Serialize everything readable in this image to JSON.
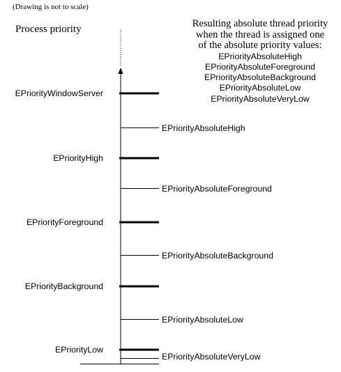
{
  "note": "(Drawing is not to scale)",
  "axis_title": "Process priority",
  "description": {
    "lines": [
      "Resulting absolute thread priority",
      "when the thread is assigned one",
      "of the absolute priority values:"
    ],
    "values": [
      "EPriorityAbsoluteHigh",
      "EPriorityAbsoluteForeground",
      "EPriorityAbsoluteBackground",
      "EPriorityAbsoluteLow",
      "EPriorityAbsoluteVeryLow"
    ]
  },
  "process_priorities": [
    "EPriorityWindowServer",
    "EPriorityHigh",
    "EPriorityForeground",
    "EPriorityBackground",
    "EPriorityLow"
  ],
  "absolute_priorities": [
    "EPriorityAbsoluteHigh",
    "EPriorityAbsoluteForeground",
    "EPriorityAbsoluteBackground",
    "EPriorityAbsoluteLow",
    "EPriorityAbsoluteVeryLow"
  ]
}
